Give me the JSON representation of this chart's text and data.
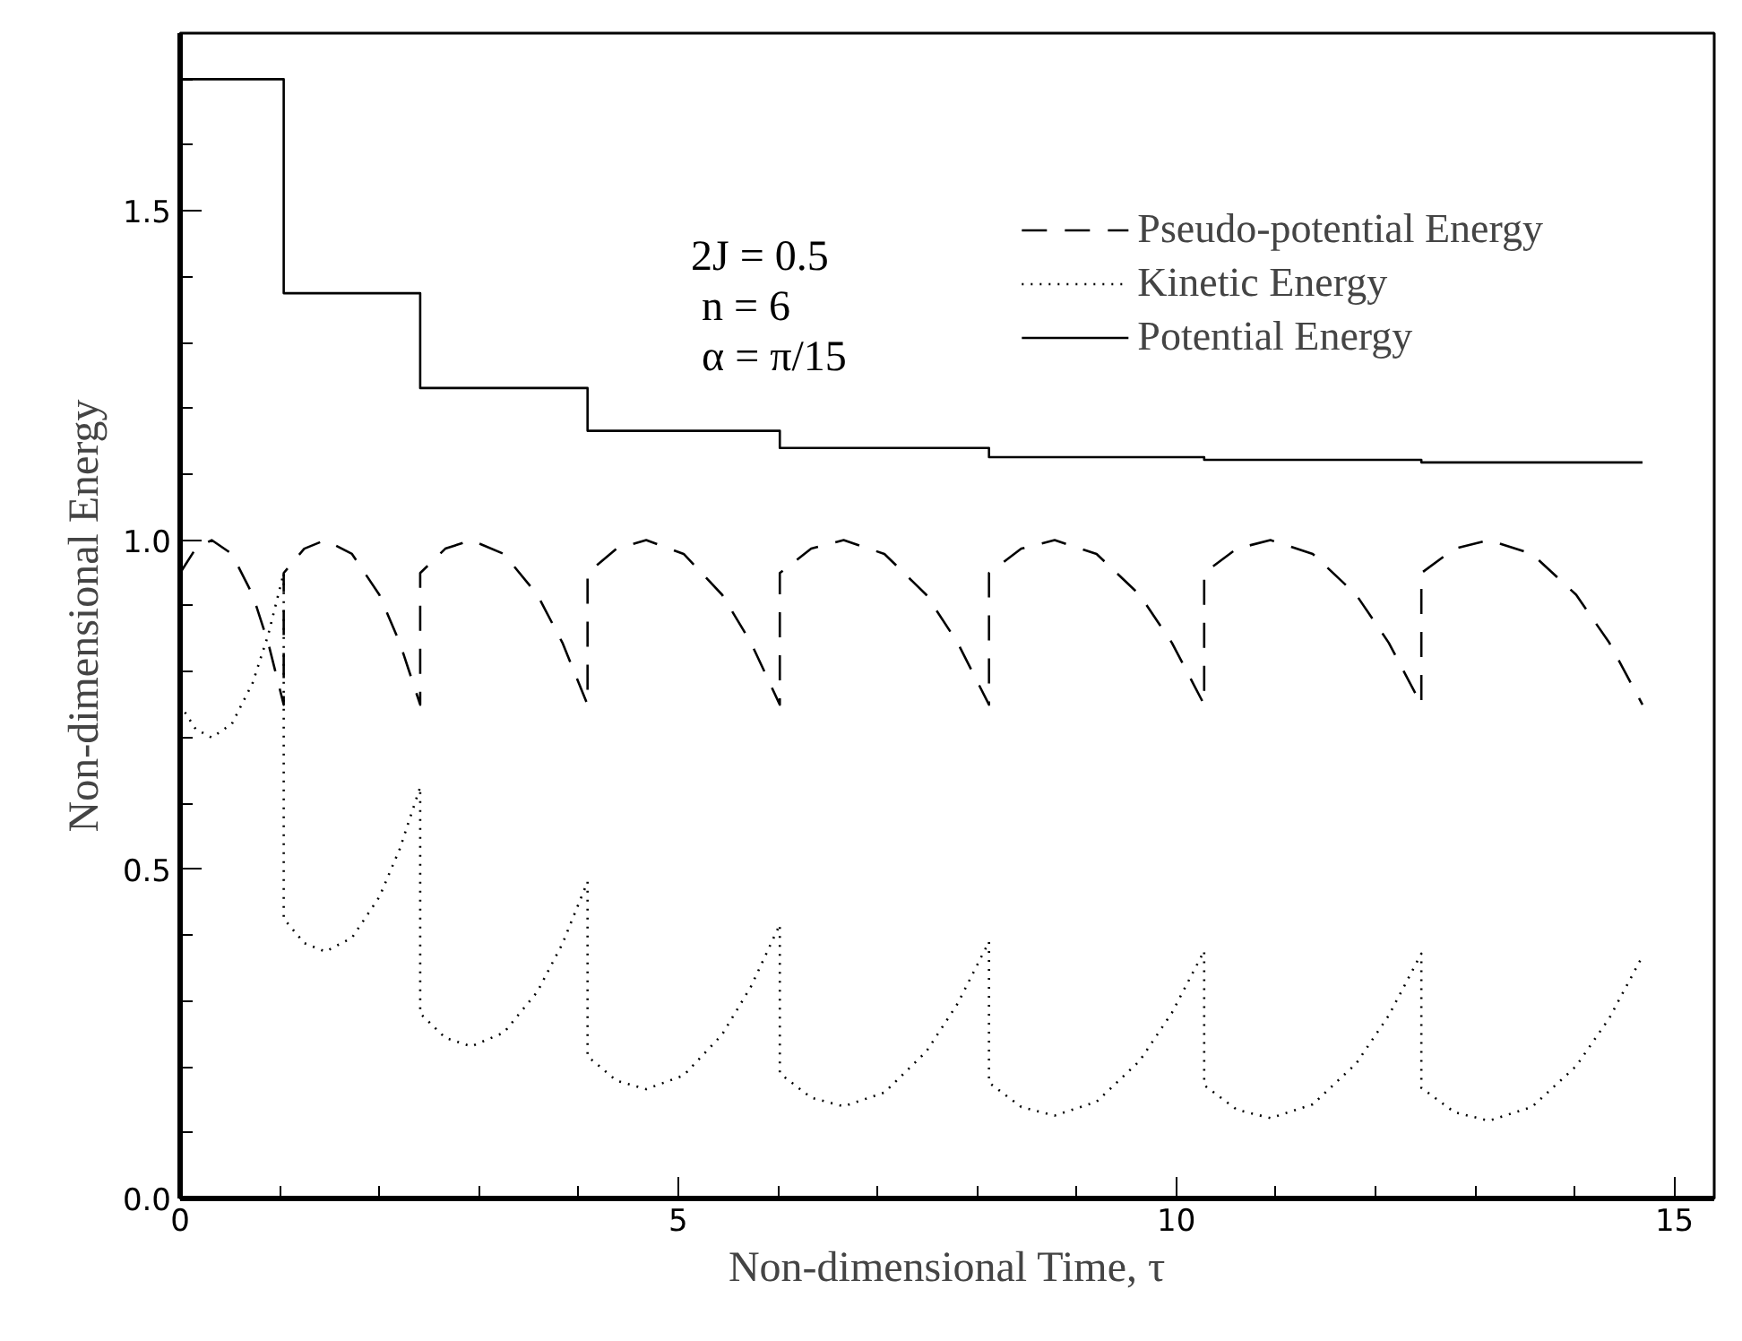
{
  "chart_data": {
    "type": "line",
    "xlabel": "Non-dimensional Time, τ",
    "ylabel": "Non-dimensional Energy",
    "annotations": [
      "2J = 0.5",
      "n = 6",
      "α = π/15"
    ],
    "xlim": [
      0,
      15.4
    ],
    "ylim": [
      0,
      1.77
    ],
    "xticks": [
      0,
      {
        "value": 1,
        "label": null
      },
      {
        "value": 2,
        "label": null
      },
      {
        "value": 3,
        "label": null
      },
      {
        "value": 4,
        "label": null
      },
      5,
      {
        "value": 6,
        "label": null
      },
      {
        "value": 7,
        "label": null
      },
      {
        "value": 8,
        "label": null
      },
      {
        "value": 9,
        "label": null
      },
      10,
      {
        "value": 11,
        "label": null
      },
      {
        "value": 12,
        "label": null
      },
      {
        "value": 13,
        "label": null
      },
      {
        "value": 14,
        "label": null
      },
      15
    ],
    "yticks": [
      {
        "value": 0,
        "label": "0.0"
      },
      {
        "value": 0.1,
        "label": null
      },
      {
        "value": 0.2,
        "label": null
      },
      {
        "value": 0.3,
        "label": null
      },
      {
        "value": 0.4,
        "label": null
      },
      {
        "value": 0.5,
        "label": "0.5"
      },
      {
        "value": 0.6,
        "label": null
      },
      {
        "value": 0.7,
        "label": null
      },
      {
        "value": 0.8,
        "label": null
      },
      {
        "value": 0.9,
        "label": null
      },
      {
        "value": 1.0,
        "label": "1.0"
      },
      {
        "value": 1.1,
        "label": null
      },
      {
        "value": 1.2,
        "label": null
      },
      {
        "value": 1.3,
        "label": null
      },
      {
        "value": 1.4,
        "label": null
      },
      {
        "value": 1.5,
        "label": "1.5"
      },
      {
        "value": 1.6,
        "label": null
      },
      {
        "value": 1.7,
        "label": null
      }
    ],
    "grid": false,
    "legend": "top right",
    "marker": "none",
    "series": [
      {
        "name": "Pseudo-potential Energy",
        "color": "#000000",
        "line_style": "dashed",
        "x": [
          0,
          0.156,
          0.317,
          0.52,
          0.728,
          0.884,
          1.04,
          1.04,
          1.246,
          1.458,
          1.725,
          2.0,
          2.205,
          2.41,
          2.41,
          2.662,
          2.922,
          3.25,
          3.586,
          3.838,
          4.09,
          4.09,
          4.38,
          4.679,
          5.055,
          5.441,
          5.731,
          6.02,
          6.02,
          6.335,
          6.661,
          7.07,
          7.49,
          7.805,
          8.12,
          8.12,
          8.444,
          8.779,
          9.2,
          9.632,
          9.956,
          10.28,
          10.28,
          10.607,
          10.945,
          11.37,
          11.806,
          12.133,
          12.46,
          12.46,
          12.793,
          13.137,
          13.57,
          14.014,
          14.347,
          14.68
        ],
        "values": [
          0.95,
          0.987,
          1.0,
          0.979,
          0.917,
          0.844,
          0.75,
          0.95,
          0.987,
          1.0,
          0.979,
          0.917,
          0.844,
          0.75,
          0.95,
          0.987,
          1.0,
          0.979,
          0.917,
          0.844,
          0.75,
          0.95,
          0.987,
          1.0,
          0.979,
          0.917,
          0.844,
          0.75,
          0.95,
          0.987,
          1.0,
          0.979,
          0.917,
          0.844,
          0.75,
          0.95,
          0.987,
          1.0,
          0.979,
          0.917,
          0.844,
          0.75,
          0.95,
          0.987,
          1.0,
          0.979,
          0.917,
          0.844,
          0.75,
          0.95,
          0.987,
          1.0,
          0.979,
          0.917,
          0.844,
          0.75
        ]
      },
      {
        "name": "Kinetic Energy",
        "color": "#000000",
        "line_style": "dotted",
        "x": [
          0,
          0.156,
          0.317,
          0.52,
          0.728,
          0.884,
          1.04,
          1.04,
          1.246,
          1.458,
          1.725,
          2.0,
          2.205,
          2.41,
          2.41,
          2.662,
          2.922,
          3.25,
          3.586,
          3.838,
          4.09,
          4.09,
          4.38,
          4.679,
          5.055,
          5.441,
          5.731,
          6.02,
          6.02,
          6.335,
          6.661,
          7.07,
          7.49,
          7.805,
          8.12,
          8.12,
          8.444,
          8.779,
          9.2,
          9.632,
          9.956,
          10.28,
          10.28,
          10.607,
          10.945,
          11.37,
          11.806,
          12.133,
          12.46,
          12.46,
          12.793,
          13.137,
          13.57,
          14.014,
          14.347,
          14.68
        ],
        "values": [
          0.75,
          0.713,
          0.7,
          0.721,
          0.783,
          0.856,
          0.95,
          0.425,
          0.388,
          0.375,
          0.396,
          0.458,
          0.531,
          0.625,
          0.281,
          0.244,
          0.231,
          0.252,
          0.314,
          0.387,
          0.481,
          0.216,
          0.179,
          0.166,
          0.187,
          0.249,
          0.322,
          0.416,
          0.19,
          0.153,
          0.14,
          0.161,
          0.223,
          0.296,
          0.39,
          0.176,
          0.139,
          0.126,
          0.147,
          0.209,
          0.282,
          0.376,
          0.172,
          0.135,
          0.122,
          0.143,
          0.205,
          0.278,
          0.372,
          0.168,
          0.131,
          0.118,
          0.139,
          0.201,
          0.274,
          0.368
        ]
      },
      {
        "name": "Potential Energy",
        "type": "step",
        "color": "#000000",
        "line_style": "solid",
        "x": [
          0,
          1.04,
          2.41,
          4.09,
          6.02,
          8.12,
          10.28,
          12.46,
          14.68
        ],
        "values": [
          1.7,
          1.375,
          1.231,
          1.166,
          1.14,
          1.126,
          1.122,
          1.118,
          1.118
        ]
      }
    ]
  }
}
